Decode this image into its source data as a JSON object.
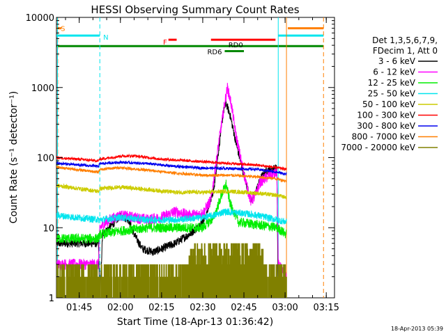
{
  "chart_data": {
    "type": "line",
    "title": "HESSI Observing Summary Count Rates",
    "xlabel": "Start Time (18-Apr-13 01:36:42)",
    "ylabel": "Count Rate (s⁻¹ detector⁻¹)",
    "y_scale": "log",
    "ylim": [
      1,
      10000
    ],
    "xlim": [
      "01:36:42",
      "03:18:00"
    ],
    "x_ticks": [
      "01:45",
      "02:00",
      "02:15",
      "02:30",
      "02:45",
      "03:00",
      "03:15"
    ],
    "y_ticks": [
      "1",
      "10",
      "100",
      "1000",
      "10000"
    ],
    "grid": false,
    "legend_position": "right",
    "legend_header": [
      "Det 1,3,5,6,7,9,",
      "FDecim 1, Att 0"
    ],
    "footer_date": "18-Apr-2013 05:39",
    "flags": [
      {
        "label": "S",
        "color": "#ff7f00",
        "y": 7000,
        "segments": [
          [
            "01:36:42",
            "01:38:30"
          ],
          [
            "03:01:00",
            "03:14:00"
          ]
        ]
      },
      {
        "label": "N",
        "color": "#00e5ee",
        "y": 5500,
        "segments": [
          [
            "01:36:42",
            "01:52:30"
          ],
          [
            "02:57:30",
            "03:14:00"
          ]
        ]
      },
      {
        "label": "F",
        "color": "#ff0000",
        "y": 4800,
        "segments": [
          [
            "02:17:30",
            "02:20:30"
          ],
          [
            "02:33:00",
            "02:56:30"
          ]
        ]
      },
      {
        "label": "RD0",
        "color": "#ff0000",
        "y": 4800,
        "segments": []
      },
      {
        "label": "",
        "color": "#008800",
        "y": 3900,
        "segments": [
          [
            "01:36:42",
            "03:14:00"
          ]
        ]
      },
      {
        "label": "RD6",
        "color": "#008800",
        "y": 3300,
        "segments": [
          [
            "02:38:00",
            "02:45:00"
          ]
        ]
      }
    ],
    "vlines": [
      {
        "time": "01:37:10",
        "color": "#ff7f00",
        "style": "dashed"
      },
      {
        "time": "01:37:05",
        "color": "#00e5ee",
        "style": "solid"
      },
      {
        "time": "01:52:30",
        "color": "#00e5ee",
        "style": "dashed"
      },
      {
        "time": "02:57:30",
        "color": "#00e5ee",
        "style": "solid"
      },
      {
        "time": "03:00:30",
        "color": "#ff7f00",
        "style": "solid"
      },
      {
        "time": "03:14:00",
        "color": "#ff7f00",
        "style": "dashed"
      }
    ],
    "series": [
      {
        "name": "3 - 6 keV",
        "color": "#000000",
        "noise": 0.06,
        "points": [
          [
            "01:36:42",
            6
          ],
          [
            "01:52:00",
            6
          ],
          [
            "01:52:30",
            0.9
          ],
          [
            "01:53:30",
            8
          ],
          [
            "01:57:00",
            11
          ],
          [
            "02:00:00",
            15
          ],
          [
            "02:03:00",
            13
          ],
          [
            "02:05:00",
            8
          ],
          [
            "02:08:00",
            5
          ],
          [
            "02:12:00",
            4.5
          ],
          [
            "02:15:00",
            5
          ],
          [
            "02:20:00",
            6
          ],
          [
            "02:25:00",
            8
          ],
          [
            "02:28:00",
            10
          ],
          [
            "02:31:00",
            14
          ],
          [
            "02:34:00",
            35
          ],
          [
            "02:36:00",
            150
          ],
          [
            "02:37:30",
            450
          ],
          [
            "02:38:30",
            600
          ],
          [
            "02:40:00",
            400
          ],
          [
            "02:42:00",
            170
          ],
          [
            "02:44:00",
            80
          ],
          [
            "02:46:00",
            40
          ],
          [
            "02:47:30",
            25
          ],
          [
            "02:49:00",
            30
          ],
          [
            "02:51:00",
            50
          ],
          [
            "02:53:00",
            65
          ],
          [
            "02:56:00",
            70
          ],
          [
            "02:57:00",
            70
          ],
          [
            "02:57:30",
            0.9
          ]
        ]
      },
      {
        "name": "6 - 12 keV",
        "color": "#ff00ff",
        "noise": 0.08,
        "points": [
          [
            "01:36:42",
            3
          ],
          [
            "01:52:00",
            3
          ],
          [
            "01:52:30",
            10
          ],
          [
            "01:56:00",
            13
          ],
          [
            "02:00:00",
            15
          ],
          [
            "02:05:00",
            14
          ],
          [
            "02:10:00",
            13
          ],
          [
            "02:15:00",
            14
          ],
          [
            "02:20:00",
            17
          ],
          [
            "02:25:00",
            15
          ],
          [
            "02:30:00",
            16
          ],
          [
            "02:33:00",
            25
          ],
          [
            "02:36:00",
            180
          ],
          [
            "02:38:00",
            600
          ],
          [
            "02:39:00",
            1000
          ],
          [
            "02:40:30",
            550
          ],
          [
            "02:42:00",
            220
          ],
          [
            "02:44:00",
            90
          ],
          [
            "02:46:00",
            40
          ],
          [
            "02:47:30",
            24
          ],
          [
            "02:49:00",
            28
          ],
          [
            "02:51:00",
            45
          ],
          [
            "02:54:00",
            55
          ],
          [
            "02:57:00",
            60
          ],
          [
            "02:57:30",
            3
          ],
          [
            "03:00:30",
            2
          ]
        ]
      },
      {
        "name": "12 - 25 keV",
        "color": "#00ee00",
        "noise": 0.07,
        "points": [
          [
            "01:36:42",
            7
          ],
          [
            "01:52:00",
            7
          ],
          [
            "01:52:30",
            8
          ],
          [
            "02:00:00",
            9
          ],
          [
            "02:10:00",
            10
          ],
          [
            "02:20:00",
            10
          ],
          [
            "02:30:00",
            10
          ],
          [
            "02:34:00",
            14
          ],
          [
            "02:37:00",
            30
          ],
          [
            "02:38:30",
            42
          ],
          [
            "02:40:00",
            22
          ],
          [
            "02:43:00",
            12
          ],
          [
            "02:50:00",
            11
          ],
          [
            "02:57:00",
            10
          ],
          [
            "03:00:30",
            8
          ]
        ]
      },
      {
        "name": "25 - 50 keV",
        "color": "#00e5ee",
        "noise": 0.05,
        "points": [
          [
            "01:36:42",
            15
          ],
          [
            "01:52:00",
            13
          ],
          [
            "01:52:30",
            13
          ],
          [
            "02:00:00",
            14
          ],
          [
            "02:10:00",
            13
          ],
          [
            "02:20:00",
            13
          ],
          [
            "02:30:00",
            14
          ],
          [
            "02:34:00",
            15
          ],
          [
            "02:38:00",
            17
          ],
          [
            "02:45:00",
            16
          ],
          [
            "02:50:00",
            15
          ],
          [
            "02:57:00",
            13
          ],
          [
            "03:00:30",
            12
          ]
        ]
      },
      {
        "name": "50 - 100 keV",
        "color": "#cccc00",
        "noise": 0.03,
        "points": [
          [
            "01:36:42",
            40
          ],
          [
            "01:52:00",
            33
          ],
          [
            "01:52:30",
            36
          ],
          [
            "02:00:00",
            38
          ],
          [
            "02:10:00",
            35
          ],
          [
            "02:20:00",
            32
          ],
          [
            "02:30:00",
            32
          ],
          [
            "02:40:00",
            33
          ],
          [
            "02:50:00",
            31
          ],
          [
            "02:57:00",
            29
          ],
          [
            "03:00:30",
            27
          ]
        ]
      },
      {
        "name": "100 - 300 keV",
        "color": "#ff0000",
        "noise": 0.02,
        "points": [
          [
            "01:36:42",
            100
          ],
          [
            "01:52:00",
            90
          ],
          [
            "01:52:30",
            95
          ],
          [
            "02:00:00",
            105
          ],
          [
            "02:05:00",
            106
          ],
          [
            "02:15:00",
            95
          ],
          [
            "02:25:00",
            90
          ],
          [
            "02:35:00",
            85
          ],
          [
            "02:45:00",
            80
          ],
          [
            "02:50:00",
            78
          ],
          [
            "02:57:00",
            72
          ],
          [
            "03:00:30",
            68
          ]
        ]
      },
      {
        "name": "300 - 800 keV",
        "color": "#0000ee",
        "noise": 0.02,
        "points": [
          [
            "01:36:42",
            83
          ],
          [
            "01:52:00",
            75
          ],
          [
            "01:52:30",
            82
          ],
          [
            "02:00:00",
            86
          ],
          [
            "02:10:00",
            82
          ],
          [
            "02:20:00",
            75
          ],
          [
            "02:30:00",
            71
          ],
          [
            "02:40:00",
            70
          ],
          [
            "02:50:00",
            68
          ],
          [
            "02:57:00",
            62
          ],
          [
            "03:00:30",
            58
          ]
        ]
      },
      {
        "name": "800 - 7000 keV",
        "color": "#ff7f00",
        "noise": 0.02,
        "points": [
          [
            "01:36:42",
            73
          ],
          [
            "01:52:00",
            62
          ],
          [
            "01:52:30",
            68
          ],
          [
            "02:00:00",
            72
          ],
          [
            "02:10:00",
            66
          ],
          [
            "02:20:00",
            60
          ],
          [
            "02:30:00",
            56
          ],
          [
            "02:40:00",
            56
          ],
          [
            "02:50:00",
            53
          ],
          [
            "02:57:00",
            50
          ],
          [
            "03:00:30",
            46
          ]
        ]
      },
      {
        "name": "7000 - 20000 keV",
        "color": "#808000",
        "noise": 0.0,
        "points": []
      }
    ]
  }
}
